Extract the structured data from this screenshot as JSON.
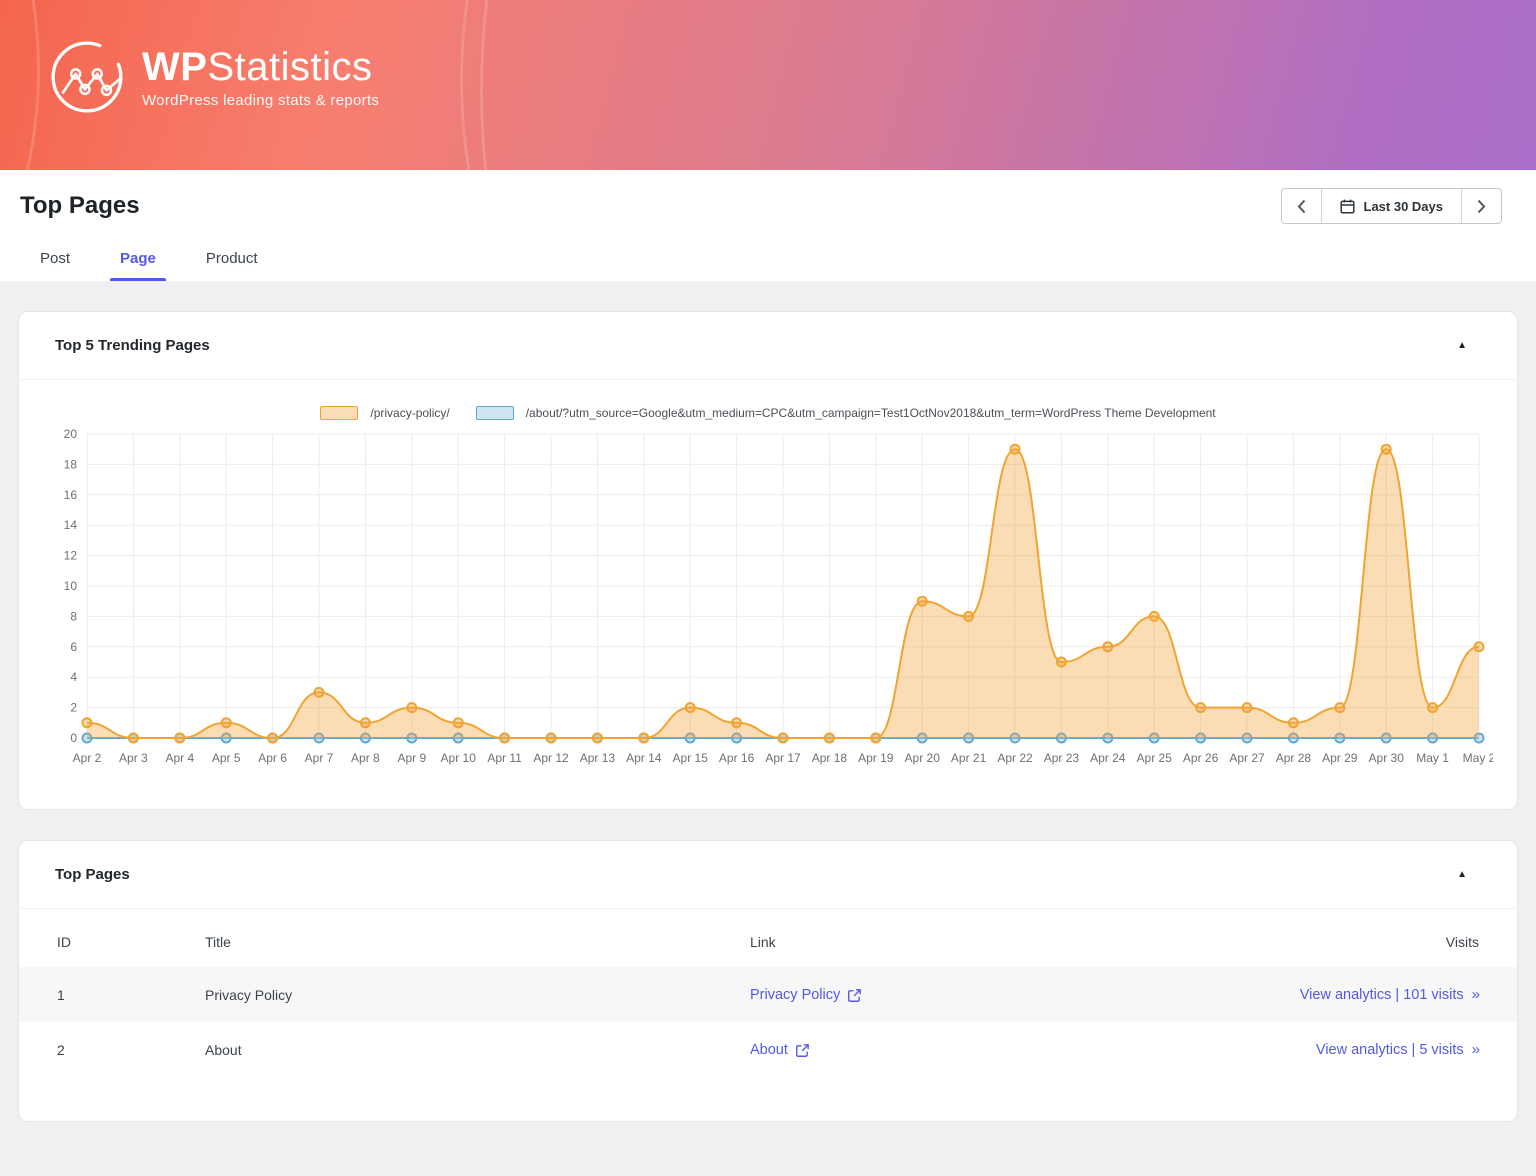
{
  "banner": {
    "brand_bold": "WP",
    "brand_light": "Statistics",
    "tagline": "WordPress leading stats & reports"
  },
  "header": {
    "title": "Top Pages",
    "date_range_label": "Last 30 Days"
  },
  "tabs": [
    {
      "label": "Post",
      "active": false
    },
    {
      "label": "Page",
      "active": true
    },
    {
      "label": "Product",
      "active": false
    }
  ],
  "trending_card": {
    "title": "Top 5 Trending Pages",
    "collapse_glyph": "▲"
  },
  "chart_data": {
    "type": "area",
    "title": "Top 5 Trending Pages",
    "x": [
      "Apr 2",
      "Apr 3",
      "Apr 4",
      "Apr 5",
      "Apr 6",
      "Apr 7",
      "Apr 8",
      "Apr 9",
      "Apr 10",
      "Apr 11",
      "Apr 12",
      "Apr 13",
      "Apr 14",
      "Apr 15",
      "Apr 16",
      "Apr 17",
      "Apr 18",
      "Apr 19",
      "Apr 20",
      "Apr 21",
      "Apr 22",
      "Apr 23",
      "Apr 24",
      "Apr 25",
      "Apr 26",
      "Apr 27",
      "Apr 28",
      "Apr 29",
      "Apr 30",
      "May 1",
      "May 2"
    ],
    "series": [
      {
        "name": "/privacy-policy/",
        "color": "#f0a431",
        "fill": "rgba(242,166,60,0.38)",
        "values": [
          1,
          0,
          0,
          1,
          0,
          3,
          1,
          2,
          1,
          0,
          0,
          0,
          0,
          2,
          1,
          0,
          0,
          0,
          9,
          8,
          19,
          5,
          6,
          8,
          2,
          2,
          1,
          2,
          19,
          2,
          6
        ]
      },
      {
        "name": "/about/?utm_source=Google&utm_medium=CPC&utm_campaign=Test1OctNov2018&utm_term=WordPress Theme Development",
        "color": "#5fa8d6",
        "fill": "rgba(140,198,233,0.45)",
        "values": [
          0,
          0,
          0,
          0,
          0,
          0,
          0,
          0,
          0,
          0,
          0,
          0,
          0,
          0,
          0,
          0,
          0,
          0,
          0,
          0,
          0,
          0,
          0,
          0,
          0,
          0,
          0,
          0,
          0,
          0,
          0
        ]
      }
    ],
    "ylim": [
      0,
      20
    ],
    "ytick_step": 2,
    "grid": true,
    "legend_position": "top"
  },
  "table_card": {
    "title": "Top Pages",
    "collapse_glyph": "▲",
    "columns": [
      "ID",
      "Title",
      "Link",
      "Visits"
    ],
    "rows": [
      {
        "id": "1",
        "title": "Privacy Policy",
        "link": "Privacy Policy",
        "visits": "View analytics | 101 visits"
      },
      {
        "id": "2",
        "title": "About",
        "link": "About",
        "visits": "View analytics | 5 visits"
      }
    ],
    "more_glyph": "»"
  },
  "colors": {
    "accent": "#5358e9",
    "banner_left": "#f4654e",
    "banner_right": "#a96ec8",
    "grid_line": "#ebebeb",
    "axis_text": "#6b7177"
  }
}
